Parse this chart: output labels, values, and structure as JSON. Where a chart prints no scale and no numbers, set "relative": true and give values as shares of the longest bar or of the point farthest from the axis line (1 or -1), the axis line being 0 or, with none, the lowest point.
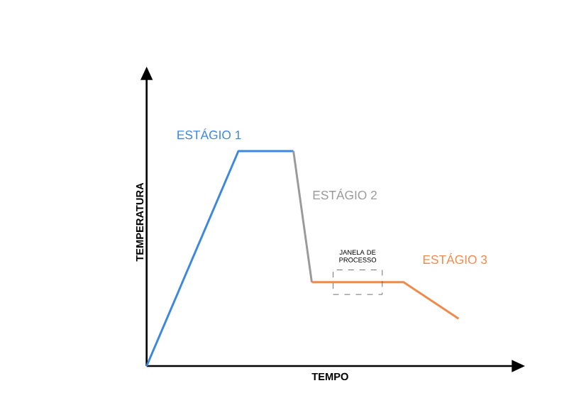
{
  "chart_data": {
    "type": "line",
    "relative": true,
    "xlabel": "TEMPO",
    "ylabel": "TEMPERATURA",
    "marker": "none",
    "line_style": "solid",
    "categories": [
      null,
      null,
      null,
      null,
      null,
      null,
      null,
      null,
      null,
      null,
      null,
      null,
      null,
      null,
      null,
      null,
      null,
      null,
      null,
      null,
      null
    ],
    "series": [
      {
        "name": "ESTÁGIO 1",
        "color": "#3c87e0",
        "values": [
          0,
          null,
          null,
          null,
          null,
          1,
          null,
          null,
          1,
          null,
          null,
          null,
          null,
          null,
          null,
          null,
          null,
          null,
          null,
          null,
          null
        ]
      },
      {
        "name": "ESTÁGIO 2",
        "color": "#9a9a9a",
        "values": [
          null,
          null,
          null,
          null,
          null,
          null,
          null,
          null,
          1,
          0.39,
          null,
          null,
          null,
          null,
          null,
          null,
          null,
          null,
          null,
          null,
          null
        ]
      },
      {
        "name": "ESTÁGIO 3",
        "color": "#f08a4b",
        "values": [
          null,
          null,
          null,
          null,
          null,
          null,
          null,
          null,
          null,
          0.39,
          null,
          null,
          null,
          null,
          0.39,
          null,
          null,
          0.22,
          null,
          null,
          null
        ]
      }
    ],
    "annotations": [
      "JANELA DE PROCESSO"
    ]
  }
}
